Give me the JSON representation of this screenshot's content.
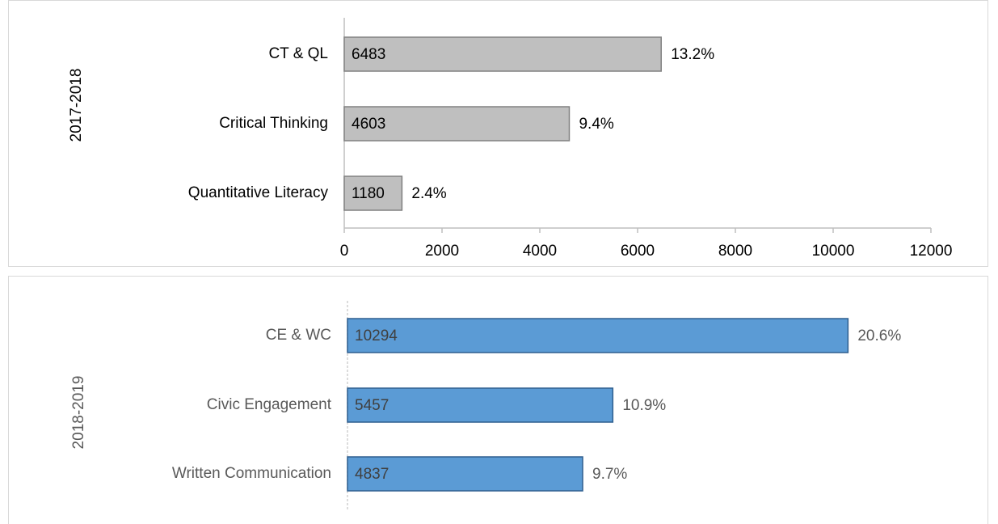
{
  "chart_data": [
    {
      "type": "bar",
      "orientation": "horizontal",
      "axis_label": "2017-2018",
      "categories": [
        "CT & QL",
        "Critical Thinking",
        "Quantitative Literacy"
      ],
      "values": [
        6483,
        4603,
        1180
      ],
      "percent_labels": [
        "13.2%",
        "9.4%",
        "2.4%"
      ],
      "color": "#bfbfbf",
      "xlim": [
        0,
        12000
      ],
      "xticks": [
        0,
        2000,
        4000,
        6000,
        8000,
        10000,
        12000
      ]
    },
    {
      "type": "bar",
      "orientation": "horizontal",
      "axis_label": "2018-2019",
      "categories": [
        "CE & WC",
        "Civic Engagement",
        "Written Communication"
      ],
      "values": [
        10294,
        5457,
        4837
      ],
      "percent_labels": [
        "20.6%",
        "10.9%",
        "9.7%"
      ],
      "color": "#5b9bd5",
      "xlim": [
        0,
        12000
      ]
    }
  ]
}
